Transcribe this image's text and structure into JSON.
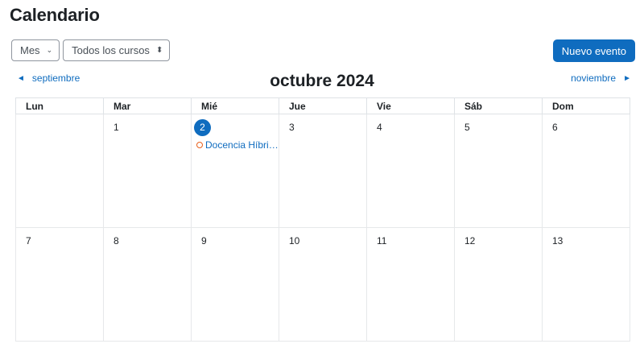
{
  "page": {
    "title": "Calendario"
  },
  "controls": {
    "view_select": "Mes",
    "course_select": "Todos los cursos",
    "new_event_label": "Nuevo evento"
  },
  "navigation": {
    "prev_month": "septiembre",
    "current_month": "octubre 2024",
    "next_month": "noviembre"
  },
  "weekdays": [
    "Lun",
    "Mar",
    "Mié",
    "Jue",
    "Vie",
    "Sáb",
    "Dom"
  ],
  "weeks": [
    {
      "days": [
        {
          "num": ""
        },
        {
          "num": "1"
        },
        {
          "num": "2",
          "today": true,
          "events": [
            "Docencia Híbri…"
          ]
        },
        {
          "num": "3"
        },
        {
          "num": "4"
        },
        {
          "num": "5"
        },
        {
          "num": "6"
        }
      ]
    },
    {
      "days": [
        {
          "num": "7"
        },
        {
          "num": "8"
        },
        {
          "num": "9"
        },
        {
          "num": "10"
        },
        {
          "num": "11"
        },
        {
          "num": "12"
        },
        {
          "num": "13"
        }
      ]
    }
  ],
  "colors": {
    "accent": "#0f6cbf",
    "event_dot": "#e8601c"
  }
}
